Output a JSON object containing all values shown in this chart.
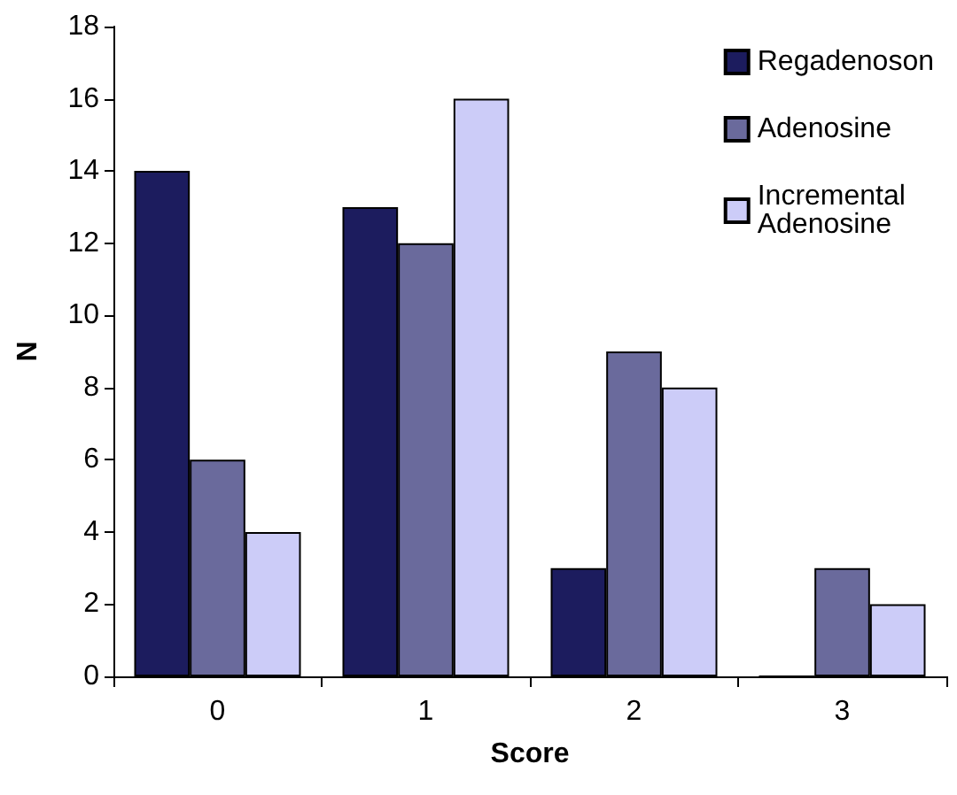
{
  "chart_data": {
    "type": "bar",
    "xlabel": "Score",
    "ylabel": "N",
    "categories": [
      "0",
      "1",
      "2",
      "3"
    ],
    "series": [
      {
        "name": "Regadenoson",
        "color": "#1c1c5e",
        "values": [
          14,
          13,
          3,
          0
        ]
      },
      {
        "name": "Adenosine",
        "color": "#6a6a9c",
        "values": [
          6,
          12,
          9,
          3
        ]
      },
      {
        "name": "Incremental Adenosine",
        "color": "#ccccf8",
        "values": [
          4,
          16,
          8,
          2
        ]
      }
    ],
    "ylim": [
      0,
      18
    ],
    "yticks": [
      0,
      2,
      4,
      6,
      8,
      10,
      12,
      14,
      16,
      18
    ],
    "grid": false,
    "legend": "top right"
  }
}
